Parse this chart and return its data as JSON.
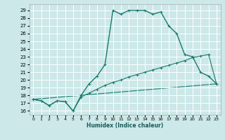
{
  "xlabel": "Humidex (Indice chaleur)",
  "bg_color": "#cce8e8",
  "grid_color": "#ffffff",
  "line_color": "#1a7a6e",
  "xlim": [
    -0.5,
    23.5
  ],
  "ylim": [
    15.5,
    29.8
  ],
  "xticks": [
    0,
    1,
    2,
    3,
    4,
    5,
    6,
    7,
    8,
    9,
    10,
    11,
    12,
    13,
    14,
    15,
    16,
    17,
    18,
    19,
    20,
    21,
    22,
    23
  ],
  "yticks": [
    16,
    17,
    18,
    19,
    20,
    21,
    22,
    23,
    24,
    25,
    26,
    27,
    28,
    29
  ],
  "line1_x": [
    0,
    1,
    2,
    3,
    4,
    5,
    6,
    7,
    8,
    9,
    10,
    11,
    12,
    13,
    14,
    15,
    16,
    17,
    18,
    19,
    20,
    21,
    22,
    23
  ],
  "line1_y": [
    17.5,
    17.3,
    16.7,
    17.3,
    17.2,
    16.0,
    18.0,
    19.5,
    20.5,
    22.0,
    29.0,
    28.5,
    29.0,
    29.0,
    29.0,
    28.5,
    28.8,
    27.0,
    26.0,
    23.3,
    23.0,
    21.0,
    20.5,
    19.5
  ],
  "line2_x": [
    0,
    1,
    2,
    3,
    4,
    5,
    6,
    7,
    8,
    9,
    10,
    11,
    12,
    13,
    14,
    15,
    16,
    17,
    18,
    19,
    20,
    21,
    22,
    23
  ],
  "line2_y": [
    17.5,
    17.3,
    16.7,
    17.3,
    17.2,
    16.0,
    17.8,
    18.3,
    18.8,
    19.3,
    19.7,
    20.0,
    20.4,
    20.7,
    21.0,
    21.3,
    21.6,
    21.9,
    22.2,
    22.5,
    22.9,
    23.1,
    23.3,
    19.5
  ],
  "line3_x": [
    0,
    23
  ],
  "line3_y": [
    17.5,
    19.5
  ]
}
